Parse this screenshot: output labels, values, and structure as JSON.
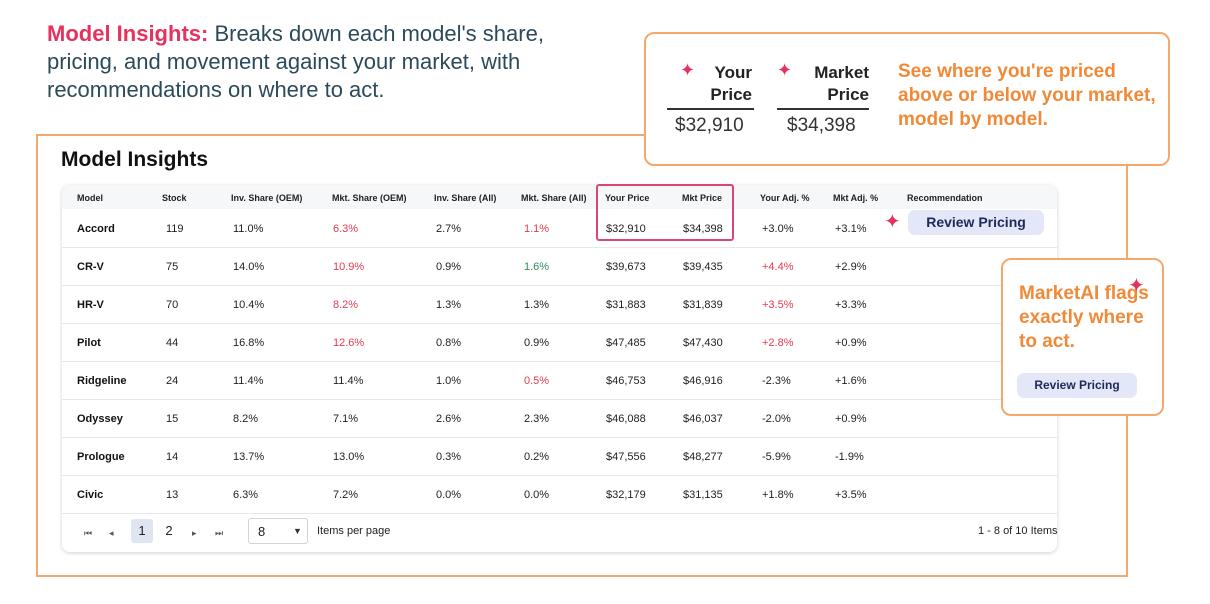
{
  "headline": {
    "title": "Model Insights:",
    "text": " Breaks down each model's share, pricing, and movement against your market, with recommendations on where to act."
  },
  "panel": {
    "title": "Model Insights"
  },
  "table": {
    "headers": {
      "model": "Model",
      "stock": "Stock",
      "inv_share_oem": "Inv. Share (OEM)",
      "mkt_share_oem": "Mkt. Share (OEM)",
      "inv_share_all": "Inv. Share (All)",
      "mkt_share_all": "Mkt. Share (All)",
      "your_price": "Your Price",
      "mkt_price": "Mkt Price",
      "your_adj": "Your Adj. %",
      "mkt_adj": "Mkt Adj. %",
      "recommendation": "Recommendation"
    },
    "rows": [
      {
        "model": "Accord",
        "stock": "119",
        "inv_oem": "11.0%",
        "mkt_oem": "6.3%",
        "inv_all": "2.7%",
        "mkt_all": "1.1%",
        "your_price": "$32,910",
        "mkt_price": "$34,398",
        "your_adj": "+3.0%",
        "mkt_adj": "+3.1%"
      },
      {
        "model": "CR-V",
        "stock": "75",
        "inv_oem": "14.0%",
        "mkt_oem": "10.9%",
        "inv_all": "0.9%",
        "mkt_all": "1.6%",
        "your_price": "$39,673",
        "mkt_price": "$39,435",
        "your_adj": "+4.4%",
        "mkt_adj": "+2.9%"
      },
      {
        "model": "HR-V",
        "stock": "70",
        "inv_oem": "10.4%",
        "mkt_oem": "8.2%",
        "inv_all": "1.3%",
        "mkt_all": "1.3%",
        "your_price": "$31,883",
        "mkt_price": "$31,839",
        "your_adj": "+3.5%",
        "mkt_adj": "+3.3%"
      },
      {
        "model": "Pilot",
        "stock": "44",
        "inv_oem": "16.8%",
        "mkt_oem": "12.6%",
        "inv_all": "0.8%",
        "mkt_all": "0.9%",
        "your_price": "$47,485",
        "mkt_price": "$47,430",
        "your_adj": "+2.8%",
        "mkt_adj": "+0.9%"
      },
      {
        "model": "Ridgeline",
        "stock": "24",
        "inv_oem": "11.4%",
        "mkt_oem": "11.4%",
        "inv_all": "1.0%",
        "mkt_all": "0.5%",
        "your_price": "$46,753",
        "mkt_price": "$46,916",
        "your_adj": "-2.3%",
        "mkt_adj": "+1.6%"
      },
      {
        "model": "Odyssey",
        "stock": "15",
        "inv_oem": "8.2%",
        "mkt_oem": "7.1%",
        "inv_all": "2.6%",
        "mkt_all": "2.3%",
        "your_price": "$46,088",
        "mkt_price": "$46,037",
        "your_adj": "-2.0%",
        "mkt_adj": "+0.9%"
      },
      {
        "model": "Prologue",
        "stock": "14",
        "inv_oem": "13.7%",
        "mkt_oem": "13.0%",
        "inv_all": "0.3%",
        "mkt_all": "0.2%",
        "your_price": "$47,556",
        "mkt_price": "$48,277",
        "your_adj": "-5.9%",
        "mkt_adj": "-1.9%"
      },
      {
        "model": "Civic",
        "stock": "13",
        "inv_oem": "6.3%",
        "mkt_oem": "7.2%",
        "inv_all": "0.0%",
        "mkt_all": "0.0%",
        "your_price": "$32,179",
        "mkt_price": "$31,135",
        "your_adj": "+1.8%",
        "mkt_adj": "+3.5%"
      }
    ],
    "recommendation_label": "Review Pricing"
  },
  "pagination": {
    "first_icon": "first-page-icon",
    "prev_icon": "prev-page-icon",
    "next_icon": "next-page-icon",
    "last_icon": "last-page-icon",
    "pages": [
      "1",
      "2"
    ],
    "current_page": "1",
    "page_size": "8",
    "items_per_page_label": "Items per page",
    "range_label": "1 - 8 of 10 Items"
  },
  "callout_prices": {
    "your_label_1": "Your",
    "your_label_2": "Price",
    "market_label_1": "Market",
    "market_label_2": "Price",
    "your_value": "$32,910",
    "market_value": "$34,398",
    "text": "See where you're priced above or below your market, model by model."
  },
  "callout_ai": {
    "text": "MarketAI flags exactly where to act.",
    "button_label": "Review Pricing"
  },
  "colors": {
    "accent_pink": "#e5325f",
    "accent_orange": "#f08a38",
    "frame_orange": "#f5a86b",
    "negative_red": "#e23b4f",
    "positive_green": "#2e8b57"
  }
}
